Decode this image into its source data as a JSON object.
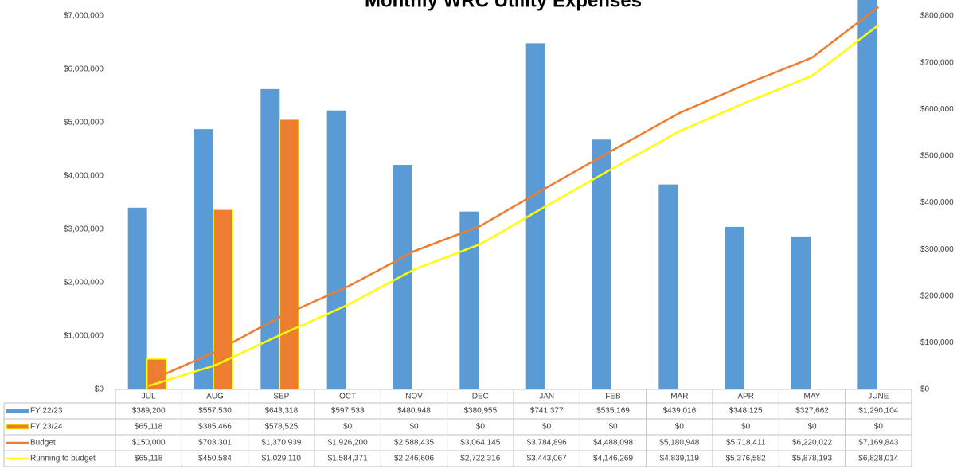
{
  "chart_data": {
    "type": "bar",
    "title": "Monthly WRC Utility Expenses",
    "categories": [
      "JUL",
      "AUG",
      "SEP",
      "OCT",
      "NOV",
      "DEC",
      "JAN",
      "FEB",
      "MAR",
      "APR",
      "MAY",
      "JUNE"
    ],
    "series": [
      {
        "name": "FY 22/23",
        "type": "bar",
        "axis": "y2",
        "color": "#5b9bd5",
        "values": [
          389200,
          557530,
          643318,
          597533,
          480948,
          380955,
          741377,
          535169,
          439016,
          348125,
          327662,
          1290104
        ],
        "value_labels": [
          "$389,200",
          "$557,530",
          "$643,318",
          "$597,533",
          "$480,948",
          "$380,955",
          "$741,377",
          "$535,169",
          "$439,016",
          "$348,125",
          "$327,662",
          "$1,290,104"
        ]
      },
      {
        "name": "FY 23/24",
        "type": "bar",
        "axis": "y2",
        "color": "#ed7d31",
        "edgecolor": "#ffff00",
        "values": [
          65118,
          385466,
          578525,
          0,
          0,
          0,
          0,
          0,
          0,
          0,
          0,
          0
        ],
        "value_labels": [
          "$65,118",
          "$385,466",
          "$578,525",
          "$0",
          "$0",
          "$0",
          "$0",
          "$0",
          "$0",
          "$0",
          "$0",
          "$0"
        ]
      },
      {
        "name": "Budget",
        "type": "line",
        "axis": "y",
        "color": "#ed7d31",
        "values": [
          150000,
          703301,
          1370939,
          1926200,
          2588435,
          3064145,
          3784896,
          4488098,
          5180948,
          5718411,
          6220022,
          7169843
        ],
        "value_labels": [
          "$150,000",
          "$703,301",
          "$1,370,939",
          "$1,926,200",
          "$2,588,435",
          "$3,064,145",
          "$3,784,896",
          "$4,488,098",
          "$5,180,948",
          "$5,718,411",
          "$6,220,022",
          "$7,169,843"
        ]
      },
      {
        "name": "Running to budget",
        "type": "line",
        "axis": "y",
        "color": "#ffff00",
        "values": [
          65118,
          450584,
          1029110,
          1584371,
          2246606,
          2722316,
          3443067,
          4146269,
          4839119,
          5376582,
          5878193,
          6828014
        ],
        "value_labels": [
          "$65,118",
          "$450,584",
          "$1,029,110",
          "$1,584,371",
          "$2,246,606",
          "$2,722,316",
          "$3,443,067",
          "$4,146,269",
          "$4,839,119",
          "$5,376,582",
          "$5,878,193",
          "$6,828,014"
        ]
      }
    ],
    "ylim": [
      0,
      7000000
    ],
    "yticks": [
      {
        "value": 0,
        "label": "$0"
      },
      {
        "value": 1000000,
        "label": "$1,000,000"
      },
      {
        "value": 2000000,
        "label": "$2,000,000"
      },
      {
        "value": 3000000,
        "label": "$3,000,000"
      },
      {
        "value": 4000000,
        "label": "$4,000,000"
      },
      {
        "value": 5000000,
        "label": "$5,000,000"
      },
      {
        "value": 6000000,
        "label": "$6,000,000"
      },
      {
        "value": 7000000,
        "label": "$7,000,000"
      }
    ],
    "y2lim": [
      0,
      800000
    ],
    "y2ticks": [
      {
        "value": 0,
        "label": "$0"
      },
      {
        "value": 100000,
        "label": "$100,000"
      },
      {
        "value": 200000,
        "label": "$200,000"
      },
      {
        "value": 300000,
        "label": "$300,000"
      },
      {
        "value": 400000,
        "label": "$400,000"
      },
      {
        "value": 500000,
        "label": "$500,000"
      },
      {
        "value": 600000,
        "label": "$600,000"
      },
      {
        "value": 700000,
        "label": "$700,000"
      },
      {
        "value": 800000,
        "label": "$800,000"
      }
    ]
  }
}
